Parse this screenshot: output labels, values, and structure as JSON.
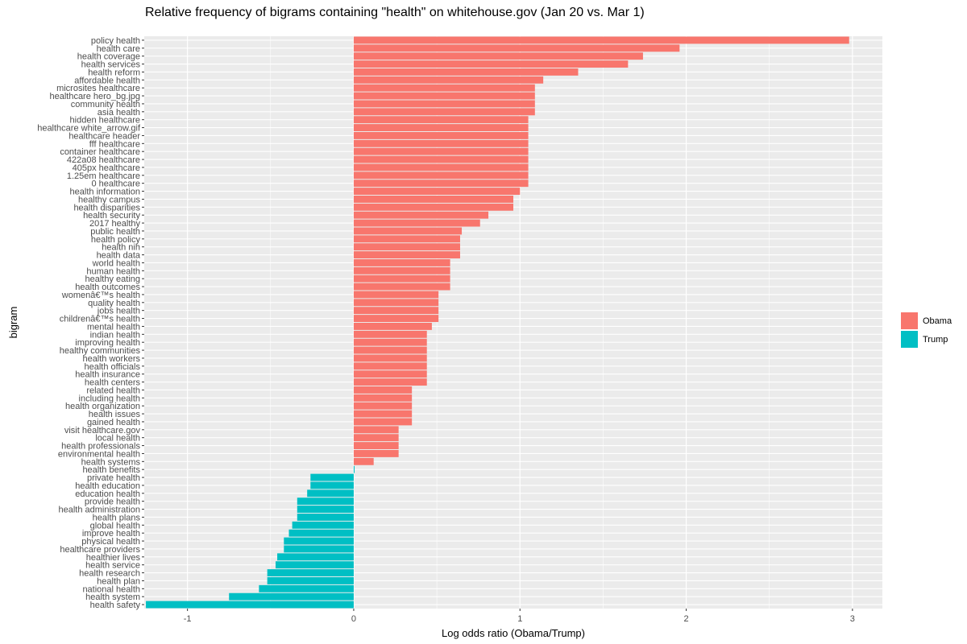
{
  "chart_data": {
    "type": "bar",
    "orientation": "horizontal",
    "title": "Relative frequency of bigrams containing \"health\" on whitehouse.gov (Jan 20 vs. Mar 1)",
    "xlabel": "Log odds ratio (Obama/Trump)",
    "ylabel": "bigram",
    "xlim": [
      -1.26,
      3.18
    ],
    "xticks": [
      -1,
      0,
      1,
      2,
      3
    ],
    "grid": true,
    "legend_position": "right",
    "colors": {
      "Obama": "#F8766D",
      "Trump": "#00BFC4",
      "panel": "#EBEBEB",
      "grid": "#FFFFFF"
    },
    "legend": [
      {
        "name": "Obama",
        "color": "#F8766D"
      },
      {
        "name": "Trump",
        "color": "#00BFC4"
      }
    ],
    "categories": [
      "policy health",
      "health care",
      "health coverage",
      "health services",
      "health reform",
      "affordable health",
      "microsites healthcare",
      "healthcare hero_bg.jpg",
      "community health",
      "asia health",
      "hidden healthcare",
      "healthcare white_arrow.gif",
      "healthcare header",
      "fff healthcare",
      "container healthcare",
      "422a08 healthcare",
      "405px healthcare",
      "1.25em healthcare",
      "0 healthcare",
      "health information",
      "healthy campus",
      "health disparities",
      "health security",
      "2017 healthy",
      "public health",
      "health policy",
      "health nih",
      "health data",
      "world health",
      "human health",
      "healthy eating",
      "health outcomes",
      "womenâ€™s health",
      "quality health",
      "jobs health",
      "childrenâ€™s health",
      "mental health",
      "indian health",
      "improving health",
      "healthy communities",
      "health workers",
      "health officials",
      "health insurance",
      "health centers",
      "related health",
      "including health",
      "health organization",
      "health issues",
      "gained health",
      "visit healthcare.gov",
      "local health",
      "health professionals",
      "environmental health",
      "health systems",
      "health benefits",
      "private health",
      "health education",
      "education health",
      "provide health",
      "health administration",
      "health plans",
      "global health",
      "improve health",
      "physical health",
      "healthcare providers",
      "healthier lives",
      "health service",
      "health research",
      "health plan",
      "national health",
      "health system",
      "health safety"
    ],
    "values": [
      2.98,
      1.96,
      1.74,
      1.65,
      1.35,
      1.14,
      1.09,
      1.09,
      1.09,
      1.09,
      1.05,
      1.05,
      1.05,
      1.05,
      1.05,
      1.05,
      1.05,
      1.05,
      1.05,
      1.0,
      0.96,
      0.96,
      0.81,
      0.76,
      0.65,
      0.64,
      0.64,
      0.64,
      0.58,
      0.58,
      0.58,
      0.58,
      0.51,
      0.51,
      0.51,
      0.51,
      0.47,
      0.44,
      0.44,
      0.44,
      0.44,
      0.44,
      0.44,
      0.44,
      0.35,
      0.35,
      0.35,
      0.35,
      0.35,
      0.27,
      0.27,
      0.27,
      0.27,
      0.12,
      0.005,
      -0.26,
      -0.26,
      -0.28,
      -0.34,
      -0.34,
      -0.34,
      -0.37,
      -0.39,
      -0.42,
      -0.42,
      -0.46,
      -0.47,
      -0.52,
      -0.52,
      -0.57,
      -0.75,
      -1.25
    ],
    "groups": [
      "Obama",
      "Obama",
      "Obama",
      "Obama",
      "Obama",
      "Obama",
      "Obama",
      "Obama",
      "Obama",
      "Obama",
      "Obama",
      "Obama",
      "Obama",
      "Obama",
      "Obama",
      "Obama",
      "Obama",
      "Obama",
      "Obama",
      "Obama",
      "Obama",
      "Obama",
      "Obama",
      "Obama",
      "Obama",
      "Obama",
      "Obama",
      "Obama",
      "Obama",
      "Obama",
      "Obama",
      "Obama",
      "Obama",
      "Obama",
      "Obama",
      "Obama",
      "Obama",
      "Obama",
      "Obama",
      "Obama",
      "Obama",
      "Obama",
      "Obama",
      "Obama",
      "Obama",
      "Obama",
      "Obama",
      "Obama",
      "Obama",
      "Obama",
      "Obama",
      "Obama",
      "Obama",
      "Obama",
      "Trump",
      "Trump",
      "Trump",
      "Trump",
      "Trump",
      "Trump",
      "Trump",
      "Trump",
      "Trump",
      "Trump",
      "Trump",
      "Trump",
      "Trump",
      "Trump",
      "Trump",
      "Trump",
      "Trump",
      "Trump"
    ]
  }
}
